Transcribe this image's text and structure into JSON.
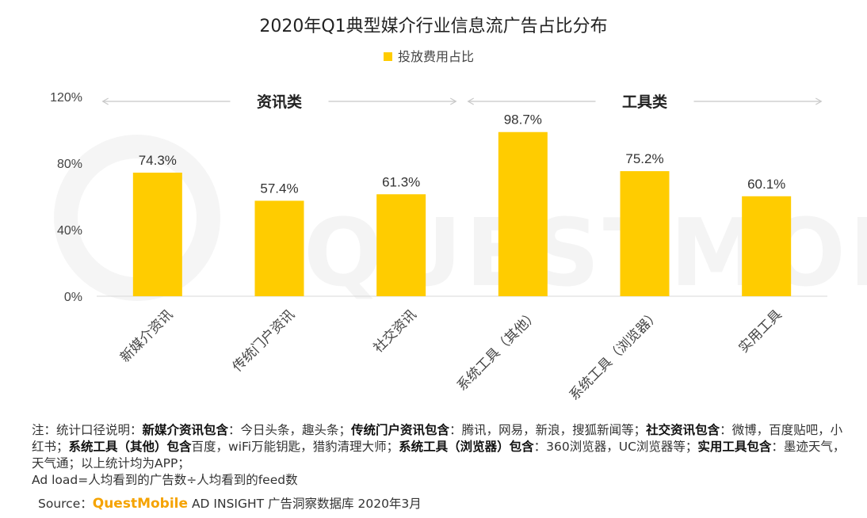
{
  "chart_data": {
    "type": "bar",
    "title": "2020年Q1典型媒介行业信息流广告占比分布",
    "legend": {
      "label": "投放费用占比",
      "position": "top-center"
    },
    "series": [
      {
        "name": "投放费用占比",
        "color": "#FFCC00",
        "values": [
          74.3,
          57.4,
          61.3,
          98.7,
          75.2,
          60.1
        ]
      }
    ],
    "categories": [
      "新媒介资讯",
      "传统门户资讯",
      "社交资讯",
      "系统工具（其他）",
      "系统工具（浏览器）",
      "实用工具"
    ],
    "data_labels": [
      "74.3%",
      "57.4%",
      "61.3%",
      "98.7%",
      "75.2%",
      "60.1%"
    ],
    "y_ticks": [
      {
        "value": 0,
        "label": "0%"
      },
      {
        "value": 40,
        "label": "40%"
      },
      {
        "value": 80,
        "label": "80%"
      },
      {
        "value": 120,
        "label": "120%"
      }
    ],
    "ylim": [
      0,
      120
    ],
    "grid": false,
    "groups": [
      {
        "label": "资讯类",
        "categories": [
          0,
          1,
          2
        ]
      },
      {
        "label": "工具类",
        "categories": [
          3,
          4,
          5
        ]
      }
    ]
  },
  "watermark": {
    "text": "QUESTMOBILE"
  },
  "note": {
    "prefix": "注：统计口径说明：",
    "b1": "新媒介资讯包含",
    "t1": "：今日头条，趣头条；",
    "b2": "传统门户资讯包含",
    "t2": "：腾讯，网易，新浪，搜狐新闻等；",
    "b3": "社交资讯包含",
    "t3": "：微博，百度贴吧，小红书；",
    "b4": "系统工具（其他）包含",
    "t4": "百度，wiFi万能钥匙，猎豹清理大师；",
    "b5": "系统工具（浏览器）包含",
    "t5": "：360浏览器，UC浏览器等；",
    "b6": "实用工具包含",
    "t6": "：墨迹天气，天气通；以上统计均为APP；",
    "line2": "Ad load=人均看到的广告数÷人均看到的feed数"
  },
  "source": {
    "label": "Source：",
    "brand": "QuestMobile",
    "text": " AD INSIGHT 广告洞察数据库 2020年3月"
  }
}
